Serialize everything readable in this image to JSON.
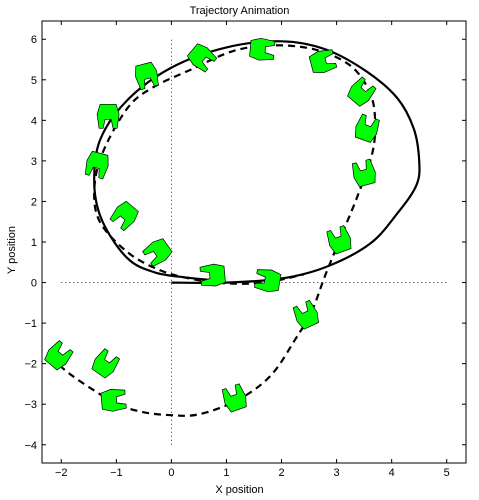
{
  "chart_data": {
    "type": "line",
    "title": "Trajectory Animation",
    "xlabel": "X position",
    "ylabel": "Y position",
    "xlim": [
      -2.35,
      5.35
    ],
    "ylim": [
      -4.45,
      6.45
    ],
    "xticks": [
      -2,
      -1,
      0,
      1,
      2,
      3,
      4,
      5
    ],
    "yticks": [
      -4,
      -3,
      -2,
      -1,
      0,
      1,
      2,
      3,
      4,
      5,
      6
    ],
    "xtick_labels": [
      "−2",
      "−1",
      "0",
      "1",
      "2",
      "3",
      "4",
      "5"
    ],
    "ytick_labels": [
      "−4",
      "−3",
      "−2",
      "−1",
      "0",
      "1",
      "2",
      "3",
      "4",
      "5",
      "6"
    ],
    "grid": false,
    "series": [
      {
        "style": "solid",
        "color": "#000000",
        "x": [
          0.0,
          1.0,
          2.0,
          2.8,
          3.6,
          4.1,
          4.45,
          4.5,
          4.4,
          4.1,
          3.55,
          2.8,
          2.0,
          1.0,
          0.0,
          -0.8,
          -1.3,
          -1.4,
          -1.25,
          -0.8,
          -0.3,
          0.3,
          0.8
        ],
        "y": [
          0.0,
          0.0,
          0.1,
          0.38,
          0.95,
          1.7,
          2.4,
          3.0,
          3.8,
          4.55,
          5.2,
          5.75,
          5.95,
          5.8,
          5.3,
          4.5,
          3.5,
          2.4,
          1.5,
          0.6,
          0.25,
          0.12,
          0.05
        ]
      },
      {
        "style": "dashed",
        "color": "#000000",
        "x": [
          -2.2,
          -1.8,
          -1.3,
          -1.0,
          -0.5,
          0.0,
          0.5,
          1.2,
          1.8,
          2.25,
          2.55,
          2.8,
          3.1,
          3.4,
          3.65,
          3.7,
          3.6,
          3.25,
          2.6,
          1.8,
          1.1,
          0.35,
          -0.35,
          -0.8,
          -1.25,
          -1.4,
          -1.3,
          -0.8,
          -0.2,
          0.4,
          1.0,
          1.7,
          2.4
        ],
        "y": [
          -1.85,
          -2.3,
          -2.75,
          -3.0,
          -3.2,
          -3.27,
          -3.25,
          -2.9,
          -2.3,
          -1.4,
          -0.7,
          0.2,
          1.2,
          2.2,
          3.2,
          4.0,
          4.7,
          5.35,
          5.75,
          5.85,
          5.7,
          5.25,
          4.8,
          4.3,
          3.2,
          2.3,
          1.5,
          0.75,
          0.3,
          0.08,
          -0.02,
          0.0,
          0.2
        ]
      },
      {
        "style": "dotted-axes",
        "color": "#000000",
        "x": [
          -2.0,
          5.0
        ],
        "y": [
          0.0,
          0.0
        ]
      }
    ],
    "robots": {
      "fill": "#00ff00",
      "stroke": "#000000",
      "poses": [
        {
          "x": -2.05,
          "y": -1.8,
          "angle": 40
        },
        {
          "x": -1.2,
          "y": -2.0,
          "angle": 35
        },
        {
          "x": -1.05,
          "y": -2.9,
          "angle": 85
        },
        {
          "x": 1.15,
          "y": -2.85,
          "angle": -20
        },
        {
          "x": 2.45,
          "y": -0.8,
          "angle": -25
        },
        {
          "x": 3.05,
          "y": 1.05,
          "angle": -20
        },
        {
          "x": 3.5,
          "y": 2.7,
          "angle": -15
        },
        {
          "x": 3.55,
          "y": 3.8,
          "angle": 20
        },
        {
          "x": 3.45,
          "y": 4.7,
          "angle": 40
        },
        {
          "x": 2.75,
          "y": 5.45,
          "angle": 75
        },
        {
          "x": 1.65,
          "y": 5.75,
          "angle": 95
        },
        {
          "x": 0.55,
          "y": 5.55,
          "angle": 130
        },
        {
          "x": -0.45,
          "y": 5.1,
          "angle": 165
        },
        {
          "x": -1.15,
          "y": 4.1,
          "angle": 180
        },
        {
          "x": -1.35,
          "y": 2.9,
          "angle": 195
        },
        {
          "x": -0.85,
          "y": 1.65,
          "angle": 220
        },
        {
          "x": -0.25,
          "y": 0.75,
          "angle": 235
        },
        {
          "x": 0.75,
          "y": 0.18,
          "angle": 265
        },
        {
          "x": 1.75,
          "y": 0.05,
          "angle": 280
        }
      ]
    }
  }
}
